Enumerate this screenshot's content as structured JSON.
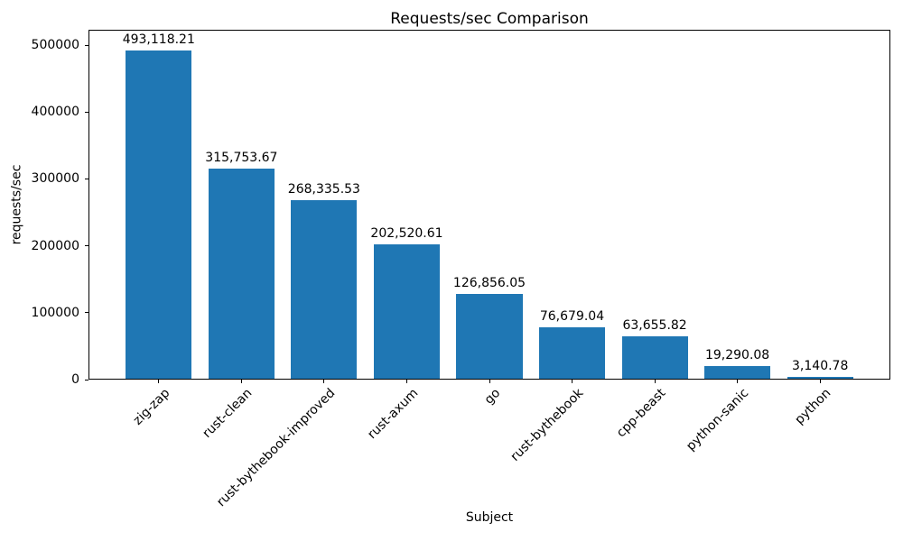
{
  "chart_data": {
    "type": "bar",
    "title": "Requests/sec Comparison",
    "xlabel": "Subject",
    "ylabel": "requests/sec",
    "categories": [
      "zig-zap",
      "rust-clean",
      "rust-bythebook-improved",
      "rust-axum",
      "go",
      "rust-bythebook",
      "cpp-beast",
      "python-sanic",
      "python"
    ],
    "values": [
      493118.21,
      315753.67,
      268335.53,
      202520.61,
      126856.05,
      76679.04,
      63655.82,
      19290.08,
      3140.78
    ],
    "value_labels": [
      "493,118.21",
      "315,753.67",
      "268,335.53",
      "202,520.61",
      "126,856.05",
      "76,679.04",
      "63,655.82",
      "19,290.08",
      "3,140.78"
    ],
    "bar_color": "#1f77b4",
    "axis_color": "#000000",
    "ylim": [
      0,
      523000
    ],
    "yticks": [
      0,
      100000,
      200000,
      300000,
      400000,
      500000
    ],
    "ytick_labels": [
      "0",
      "100000",
      "200000",
      "300000",
      "400000",
      "500000"
    ],
    "grid": false,
    "legend_position": "none",
    "x_tick_rotation_deg": 45
  }
}
